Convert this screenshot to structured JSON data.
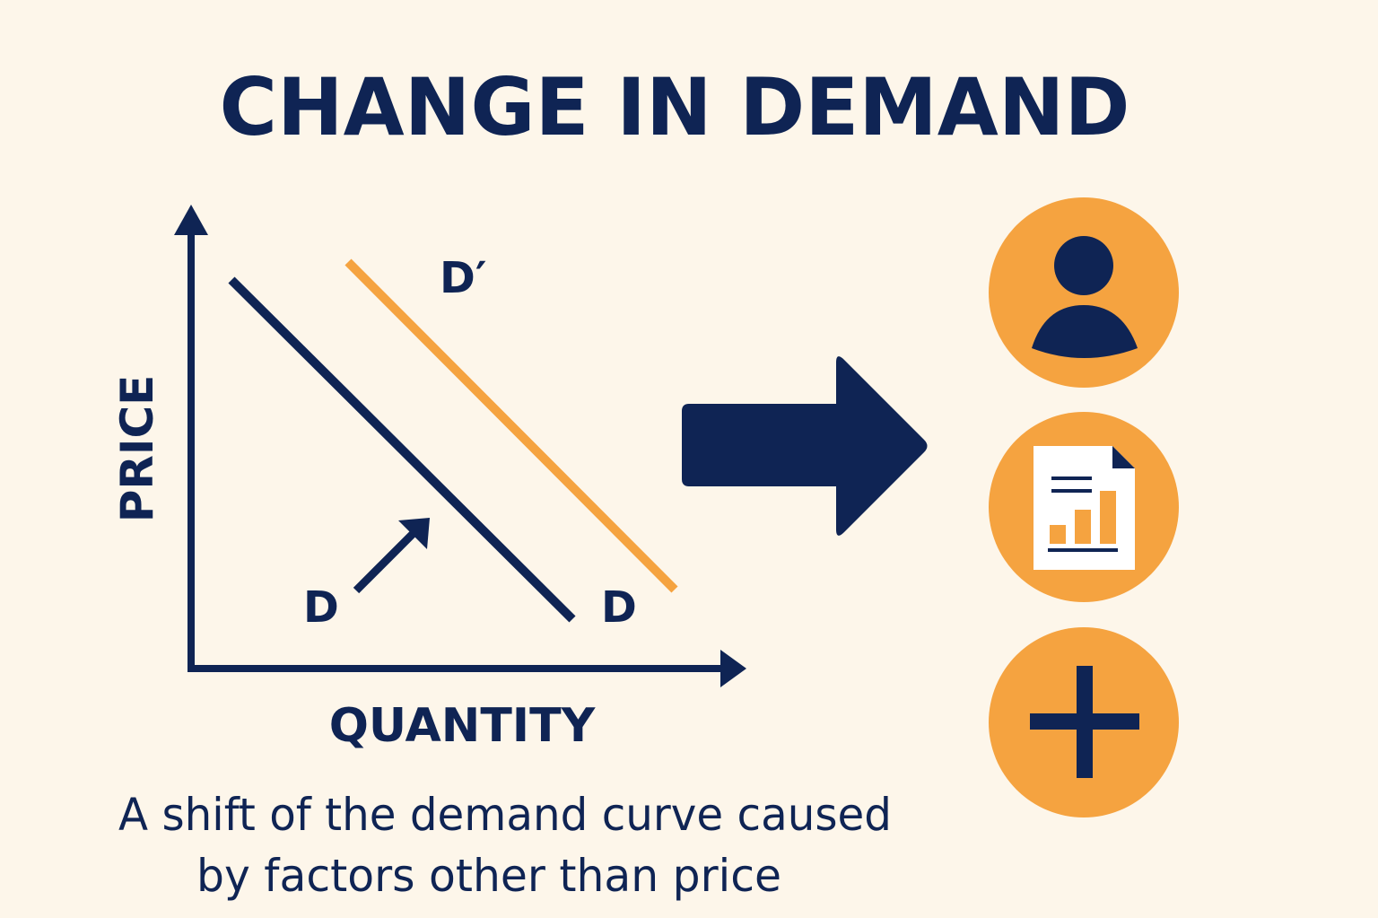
{
  "header": {
    "title": "CHANGE IN DEMAND"
  },
  "graph": {
    "y_axis_label": "PRICE",
    "x_axis_label": "QUANTITY",
    "curve_labels": {
      "shifted": "D′",
      "original_bottom_left": "D",
      "original_bottom_right": "D"
    }
  },
  "caption": {
    "lines": [
      "A shift of the demand curve caused",
      "by factors other than price"
    ]
  }
}
